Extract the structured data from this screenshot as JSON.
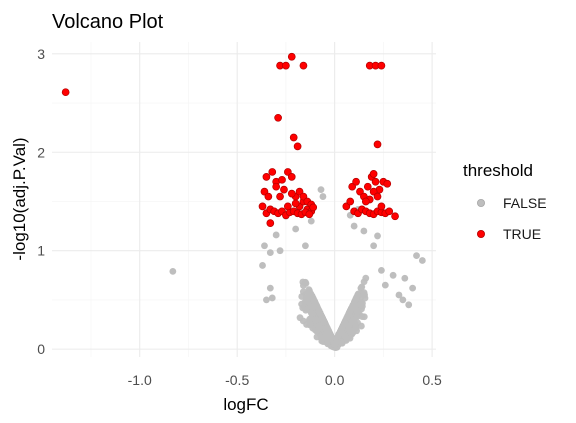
{
  "chart_data": {
    "type": "scatter",
    "title": "Volcano Plot",
    "xlabel": "logFC",
    "ylabel": "-log10(adj.P.Val)",
    "xlim": [
      -1.45,
      0.52
    ],
    "ylim": [
      -0.08,
      3.12
    ],
    "x_ticks": [
      -1.0,
      -0.5,
      0.0,
      0.5
    ],
    "x_tick_labels": [
      "-1.0",
      "-0.5",
      "0.0",
      "0.5"
    ],
    "y_ticks": [
      0,
      1,
      2,
      3
    ],
    "y_tick_labels": [
      "0",
      "1",
      "2",
      "3"
    ],
    "grid": true,
    "legend": {
      "title": "threshold",
      "position": "right",
      "entries": [
        {
          "label": "FALSE",
          "color": "#bebebe"
        },
        {
          "label": "TRUE",
          "color": "#ff0000"
        }
      ]
    },
    "series": [
      {
        "name": "FALSE",
        "color": "#bebebe",
        "points": [
          [
            -0.83,
            0.79
          ],
          [
            -0.37,
            0.85
          ],
          [
            -0.35,
            0.5
          ],
          [
            -0.33,
            0.62
          ],
          [
            -0.32,
            0.52
          ],
          [
            -0.3,
            1.16
          ],
          [
            -0.36,
            1.05
          ],
          [
            -0.33,
            0.98
          ],
          [
            -0.28,
            1.0
          ],
          [
            -0.25,
            1.35
          ],
          [
            -0.12,
            1.3
          ],
          [
            -0.07,
            1.62
          ],
          [
            -0.06,
            1.55
          ],
          [
            -0.2,
            1.22
          ],
          [
            -0.15,
            1.05
          ],
          [
            0.08,
            1.36
          ],
          [
            0.1,
            1.25
          ],
          [
            0.12,
            1.42
          ],
          [
            0.15,
            1.2
          ],
          [
            0.2,
            1.05
          ],
          [
            0.22,
            1.15
          ],
          [
            0.24,
            0.8
          ],
          [
            0.26,
            0.65
          ],
          [
            0.3,
            0.75
          ],
          [
            0.35,
            0.5
          ],
          [
            0.38,
            0.45
          ],
          [
            0.4,
            0.62
          ],
          [
            0.45,
            0.9
          ],
          [
            0.42,
            0.95
          ],
          [
            0.36,
            0.72
          ],
          [
            0.33,
            0.55
          ],
          [
            -0.02,
            0.1
          ],
          [
            0.0,
            0.05
          ],
          [
            0.02,
            0.15
          ],
          [
            -0.04,
            0.2
          ]
        ]
      },
      {
        "name": "TRUE",
        "color": "#ff0000",
        "points": [
          [
            -1.38,
            2.61
          ],
          [
            -0.35,
            1.75
          ],
          [
            -0.3,
            1.7
          ],
          [
            -0.27,
            1.72
          ],
          [
            -0.24,
            1.8
          ],
          [
            -0.22,
            1.75
          ],
          [
            -0.2,
            1.55
          ],
          [
            -0.18,
            1.45
          ],
          [
            -0.16,
            1.5
          ],
          [
            -0.14,
            1.42
          ],
          [
            -0.12,
            1.4
          ],
          [
            -0.37,
            1.45
          ],
          [
            -0.35,
            1.38
          ],
          [
            -0.33,
            1.42
          ],
          [
            -0.31,
            1.4
          ],
          [
            -0.29,
            1.38
          ],
          [
            -0.27,
            1.4
          ],
          [
            -0.25,
            1.36
          ],
          [
            -0.23,
            1.39
          ],
          [
            -0.21,
            1.4
          ],
          [
            -0.19,
            1.38
          ],
          [
            -0.17,
            1.37
          ],
          [
            -0.15,
            1.39
          ],
          [
            -0.13,
            1.37
          ],
          [
            -0.36,
            1.6
          ],
          [
            -0.34,
            1.55
          ],
          [
            -0.32,
            1.8
          ],
          [
            -0.3,
            1.65
          ],
          [
            -0.28,
            1.55
          ],
          [
            -0.26,
            1.62
          ],
          [
            -0.24,
            1.45
          ],
          [
            -0.22,
            1.58
          ],
          [
            -0.2,
            1.48
          ],
          [
            -0.18,
            1.6
          ],
          [
            -0.16,
            1.55
          ],
          [
            -0.14,
            1.5
          ],
          [
            -0.33,
            1.28
          ],
          [
            -0.28,
            2.88
          ],
          [
            -0.25,
            2.88
          ],
          [
            -0.22,
            2.97
          ],
          [
            -0.16,
            2.88
          ],
          [
            -0.29,
            2.35
          ],
          [
            -0.21,
            2.15
          ],
          [
            -0.19,
            2.06
          ],
          [
            -0.12,
            1.47
          ],
          [
            -0.11,
            1.44
          ],
          [
            0.06,
            1.45
          ],
          [
            0.08,
            1.5
          ],
          [
            0.1,
            1.4
          ],
          [
            0.12,
            1.38
          ],
          [
            0.14,
            1.42
          ],
          [
            0.16,
            1.4
          ],
          [
            0.18,
            1.38
          ],
          [
            0.2,
            1.37
          ],
          [
            0.22,
            1.4
          ],
          [
            0.24,
            1.39
          ],
          [
            0.26,
            1.38
          ],
          [
            0.28,
            1.4
          ],
          [
            0.09,
            1.65
          ],
          [
            0.11,
            1.7
          ],
          [
            0.13,
            1.6
          ],
          [
            0.15,
            1.55
          ],
          [
            0.17,
            1.65
          ],
          [
            0.19,
            1.75
          ],
          [
            0.21,
            1.7
          ],
          [
            0.23,
            1.62
          ],
          [
            0.25,
            1.7
          ],
          [
            0.27,
            1.68
          ],
          [
            0.18,
            1.52
          ],
          [
            0.2,
            1.6
          ],
          [
            0.22,
            1.55
          ],
          [
            0.16,
            1.5
          ],
          [
            0.24,
            1.45
          ],
          [
            0.31,
            1.35
          ],
          [
            0.18,
            2.88
          ],
          [
            0.21,
            2.88
          ],
          [
            0.24,
            2.88
          ],
          [
            0.22,
            2.08
          ],
          [
            0.2,
            1.78
          ]
        ]
      }
    ]
  }
}
